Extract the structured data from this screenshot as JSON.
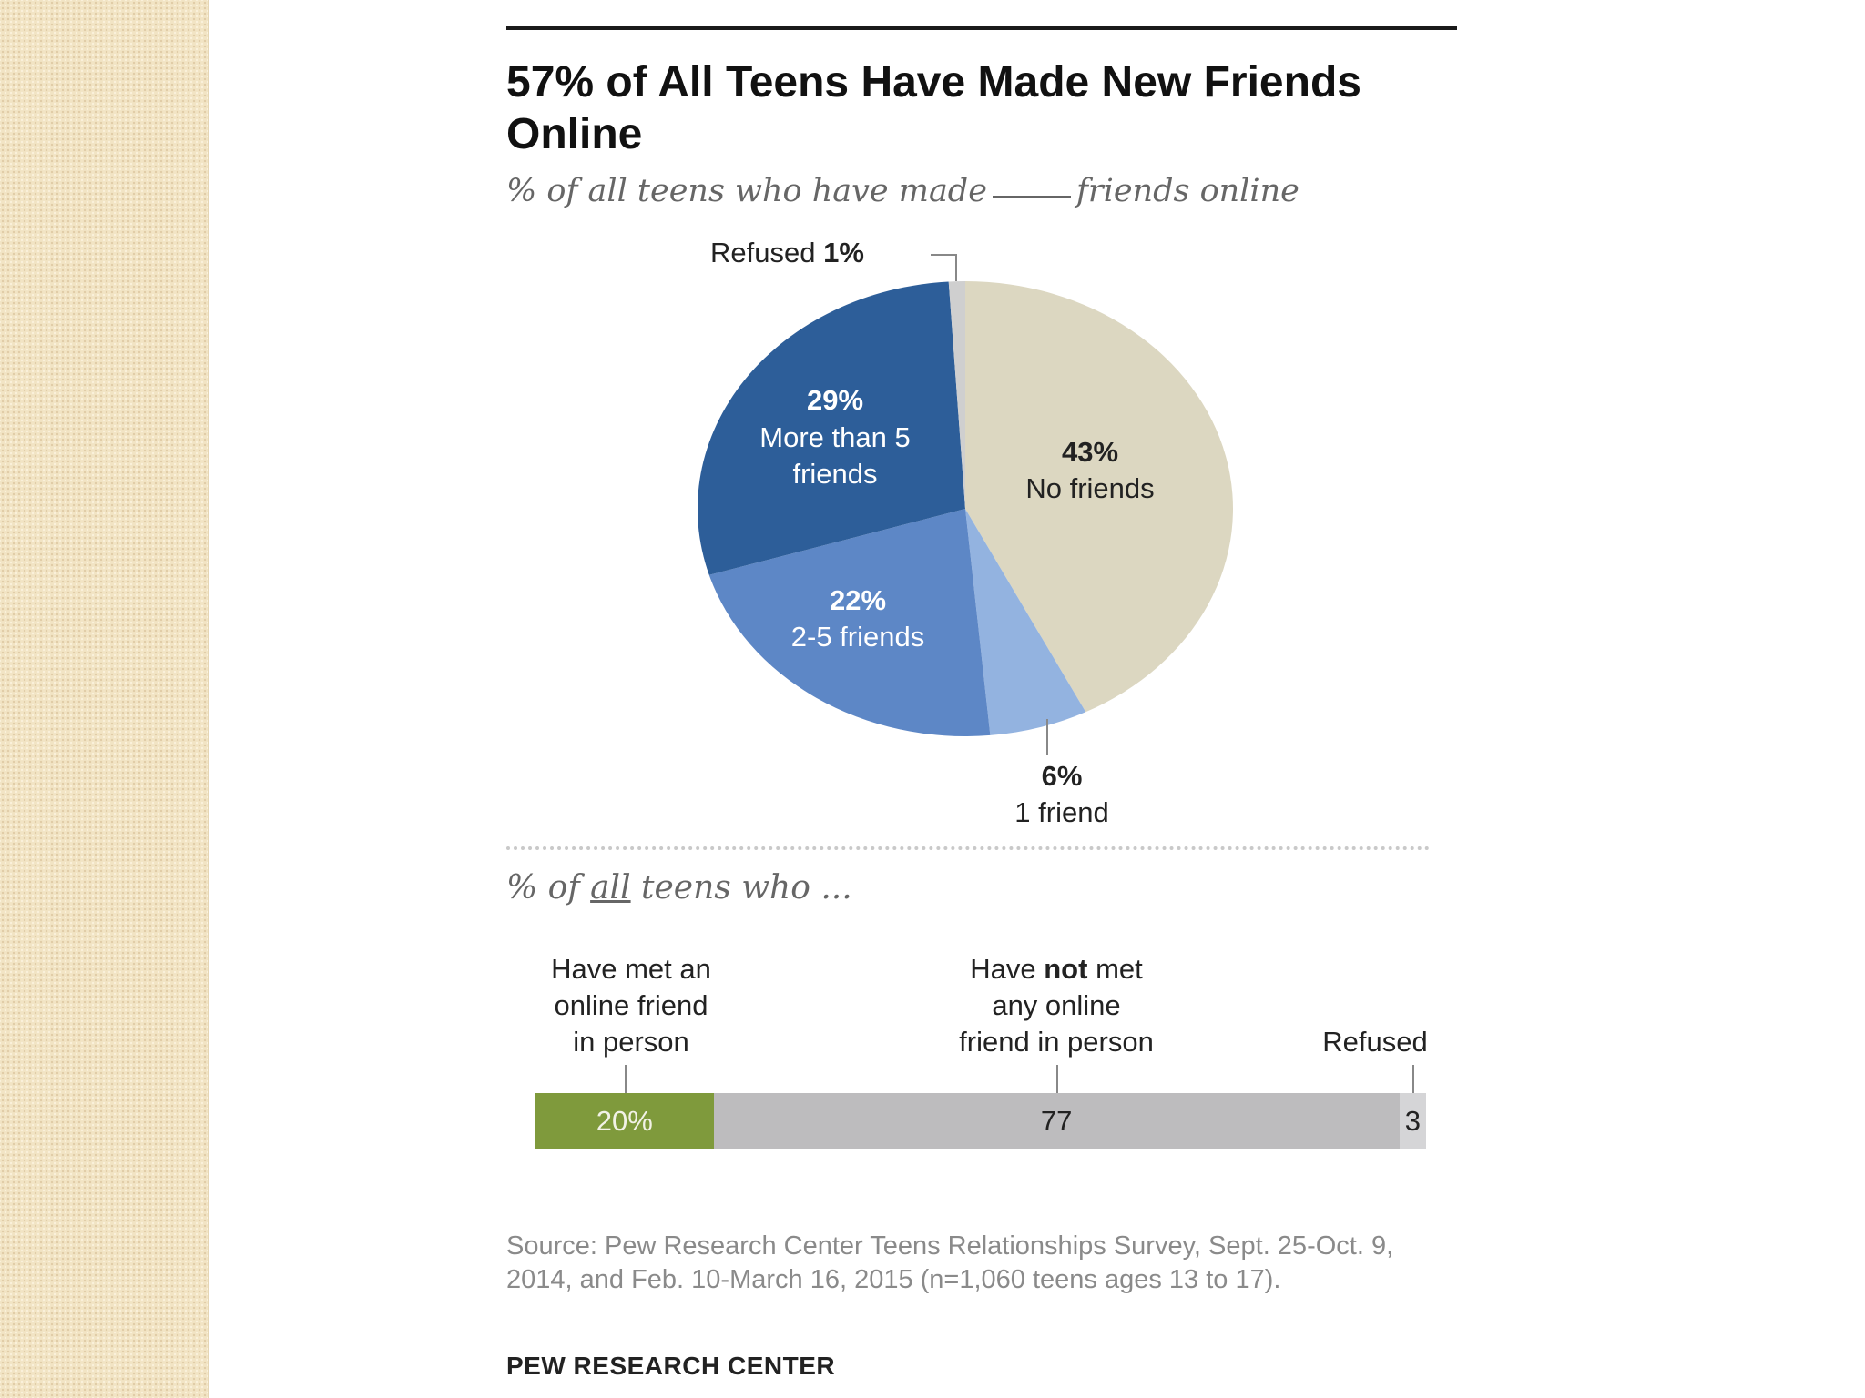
{
  "title": "57% of All Teens Have Made New Friends Online",
  "subtitle_before": "% of all teens who have made",
  "subtitle_after": "friends online",
  "subtitle2_prefix": "% of ",
  "subtitle2_underlined": "all",
  "subtitle2_suffix": " teens who ...",
  "colors": {
    "no_friends": "#dcd7c1",
    "one_friend": "#93b3e0",
    "two_five": "#5d87c6",
    "more_than_five": "#2d5e99",
    "refused": "#cfcfcf",
    "met_in_person": "#7f9a3c",
    "not_met": "#bdbcbe",
    "bar_refused": "#d5d5d7"
  },
  "chart_data": [
    {
      "type": "pie",
      "title": "57% of All Teens Have Made New Friends Online",
      "subtitle": "% of all teens who have made ____ friends online",
      "slices": [
        {
          "label": "No friends",
          "value": 43,
          "value_label": "43%"
        },
        {
          "label": "1 friend",
          "value": 6,
          "value_label": "6%"
        },
        {
          "label": "2-5 friends",
          "value": 22,
          "value_label": "22%"
        },
        {
          "label": "More than 5 friends",
          "value": 29,
          "value_label": "29%"
        },
        {
          "label": "Refused",
          "value": 1,
          "value_label": "1%"
        }
      ]
    },
    {
      "type": "bar",
      "orientation": "horizontal-stacked",
      "subtitle": "% of all teens who ...",
      "segments": [
        {
          "label": "Have met an online friend in person",
          "value": 20,
          "value_label": "20%"
        },
        {
          "label": "Have not met any online friend in person",
          "value": 77,
          "value_label": "77"
        },
        {
          "label": "Refused",
          "value": 3,
          "value_label": "3"
        }
      ]
    }
  ],
  "pie_labels": {
    "no_friends_pct": "43%",
    "no_friends": "No friends",
    "one_friend_pct": "6%",
    "one_friend": "1 friend",
    "two_five_pct": "22%",
    "two_five": "2-5 friends",
    "more_five_pct": "29%",
    "more_five_line1": "More than 5",
    "more_five_line2": "friends",
    "refused": "Refused",
    "refused_pct": "1%"
  },
  "bar_labels": {
    "met_line1": "Have met an",
    "met_line2": "online friend",
    "met_line3": "in person",
    "notmet_line1_a": "Have",
    "notmet_line1_b": "not",
    "notmet_line1_c": "met",
    "notmet_line2": "any online",
    "notmet_line3": "friend in person",
    "refused": "Refused",
    "met_value": "20%",
    "notmet_value": "77",
    "refused_value": "3"
  },
  "source": "Source: Pew Research Center Teens Relationships Survey, Sept. 25-Oct. 9, 2014, and Feb. 10-March 16, 2015 (n=1,060 teens ages 13 to 17).",
  "brand": "PEW RESEARCH CENTER"
}
